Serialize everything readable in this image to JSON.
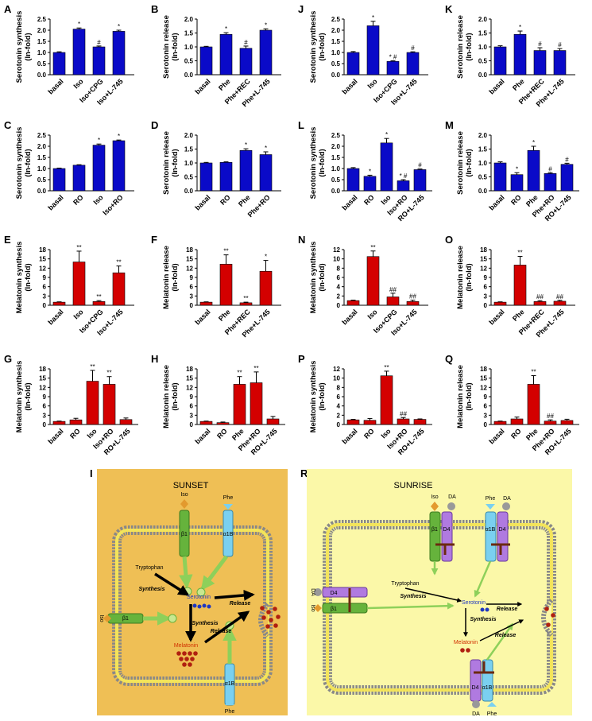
{
  "chart_data": [
    {
      "type": "bar",
      "label": "A",
      "ylabel": [
        "Serotonin synthesis",
        "(In-fold)"
      ],
      "categories": [
        "basal",
        "Iso",
        "Iso+CPG",
        "Iso+L-745"
      ],
      "values": [
        1,
        2.05,
        1.25,
        1.95
      ],
      "errors": [
        0.03,
        0.05,
        0.04,
        0.05
      ],
      "annotations": [
        null,
        "*",
        "#",
        "*"
      ],
      "color": "#0a0ac8",
      "ylim": [
        0,
        2.5
      ],
      "yticks": [
        {
          "value": 0,
          "label": "0.0"
        },
        0.5,
        {
          "value": 1,
          "label": "1.0"
        },
        1.5,
        {
          "value": 2,
          "label": "2.0"
        },
        2.5
      ]
    },
    {
      "type": "bar",
      "label": "B",
      "ylabel": [
        "Serotonin release",
        "(In-fold)"
      ],
      "categories": [
        "basal",
        "Phe",
        "Phe+REC",
        "Phe+L-745"
      ],
      "values": [
        1,
        1.45,
        0.95,
        1.6
      ],
      "errors": [
        0.02,
        0.06,
        0.08,
        0.05
      ],
      "annotations": [
        null,
        "*",
        "#",
        "*"
      ],
      "color": "#0a0ac8",
      "ylim": [
        0,
        2
      ],
      "yticks": [
        {
          "value": 0,
          "label": "0.0"
        },
        0.5,
        {
          "value": 1,
          "label": "1.0"
        },
        1.5,
        {
          "value": 2,
          "label": "2.0"
        }
      ]
    },
    {
      "type": "bar",
      "label": "J",
      "ylabel": [
        "Serotonin synthesis",
        "(In-fold)"
      ],
      "categories": [
        "basal",
        "Iso",
        "Iso+CPG",
        "Iso+L-745"
      ],
      "values": [
        1,
        2.2,
        0.6,
        1
      ],
      "errors": [
        0.04,
        0.2,
        0.03,
        0.03
      ],
      "annotations": [
        null,
        "*",
        "* #",
        "#"
      ],
      "color": "#0a0ac8",
      "ylim": [
        0,
        2.5
      ],
      "yticks": [
        {
          "value": 0,
          "label": "0.0"
        },
        0.5,
        {
          "value": 1,
          "label": "1.0"
        },
        1.5,
        {
          "value": 2,
          "label": "2.0"
        },
        2.5
      ]
    },
    {
      "type": "bar",
      "label": "K",
      "ylabel": [
        "Serotonin release",
        "(In-fold)"
      ],
      "categories": [
        "basal",
        "Phe",
        "Phe+REC",
        "Phe+L-745"
      ],
      "values": [
        1,
        1.45,
        0.87,
        0.87
      ],
      "errors": [
        0.04,
        0.12,
        0.1,
        0.07
      ],
      "annotations": [
        null,
        "*",
        "#",
        "#"
      ],
      "color": "#0a0ac8",
      "ylim": [
        0,
        2
      ],
      "yticks": [
        {
          "value": 0,
          "label": "0.0"
        },
        0.5,
        {
          "value": 1,
          "label": "1.0"
        },
        1.5,
        {
          "value": 2,
          "label": "2.0"
        }
      ]
    },
    {
      "type": "bar",
      "label": "C",
      "ylabel": [
        "Serotonin synthesis",
        "(In-fold)"
      ],
      "categories": [
        "basal",
        "RO",
        "Iso",
        "Iso+RO"
      ],
      "values": [
        1,
        1.15,
        2.05,
        2.25
      ],
      "errors": [
        0.02,
        0.02,
        0.05,
        0.03
      ],
      "annotations": [
        null,
        null,
        "*",
        "*"
      ],
      "color": "#0a0ac8",
      "ylim": [
        0,
        2.5
      ],
      "yticks": [
        {
          "value": 0,
          "label": "0.0"
        },
        0.5,
        {
          "value": 1,
          "label": "1.0"
        },
        1.5,
        {
          "value": 2,
          "label": "2.0"
        },
        2.5
      ]
    },
    {
      "type": "bar",
      "label": "D",
      "ylabel": [
        "Serotonin release",
        "(In-fold)"
      ],
      "categories": [
        "basal",
        "RO",
        "Phe",
        "Phe+RO"
      ],
      "values": [
        1,
        1.02,
        1.45,
        1.3
      ],
      "errors": [
        0.02,
        0.02,
        0.06,
        0.1
      ],
      "annotations": [
        null,
        null,
        "*",
        "*"
      ],
      "color": "#0a0ac8",
      "ylim": [
        0,
        2
      ],
      "yticks": [
        {
          "value": 0,
          "label": "0.0"
        },
        0.5,
        {
          "value": 1,
          "label": "1.0"
        },
        1.5,
        {
          "value": 2,
          "label": "2.0"
        }
      ]
    },
    {
      "type": "bar",
      "label": "L",
      "ylabel": [
        "Serotonin synthesis",
        "(In-fold)"
      ],
      "categories": [
        "basal",
        "RO",
        "Iso",
        "Iso+RO",
        "RO+L-745"
      ],
      "values": [
        1,
        0.65,
        2.15,
        0.45,
        0.95
      ],
      "errors": [
        0.04,
        0.05,
        0.2,
        0.05,
        0.03
      ],
      "annotations": [
        null,
        "*",
        "*",
        "* #",
        "#"
      ],
      "color": "#0a0ac8",
      "ylim": [
        0,
        2.5
      ],
      "yticks": [
        {
          "value": 0,
          "label": "0.0"
        },
        0.5,
        {
          "value": 1,
          "label": "1.0"
        },
        1.5,
        {
          "value": 2,
          "label": "2.0"
        },
        2.5
      ]
    },
    {
      "type": "bar",
      "label": "M",
      "ylabel": [
        "Serotonin release",
        "(In-fold)"
      ],
      "categories": [
        "basal",
        "RO",
        "Phe",
        "Phe+RO",
        "RO+L-745"
      ],
      "values": [
        1,
        0.58,
        1.45,
        0.62,
        0.95
      ],
      "errors": [
        0.04,
        0.07,
        0.15,
        0.03,
        0.04
      ],
      "annotations": [
        null,
        "*",
        "*",
        "#",
        "#"
      ],
      "color": "#0a0ac8",
      "ylim": [
        0,
        2
      ],
      "yticks": [
        {
          "value": 0,
          "label": "0.0"
        },
        0.5,
        {
          "value": 1,
          "label": "1.0"
        },
        1.5,
        {
          "value": 2,
          "label": "2.0"
        }
      ]
    },
    {
      "type": "bar",
      "label": "E",
      "ylabel": [
        "Melatonin synthesis",
        "(In-fold)"
      ],
      "categories": [
        "basal",
        "Iso",
        "Iso+CPG",
        "Iso+L-745"
      ],
      "values": [
        1,
        14,
        1.2,
        10.5
      ],
      "errors": [
        0.1,
        3.5,
        0.3,
        2.2
      ],
      "annotations": [
        null,
        "**",
        "**",
        "**"
      ],
      "color": "#d40000",
      "ylim": [
        0,
        18
      ],
      "yticks": [
        0,
        3,
        6,
        9,
        12,
        15,
        18
      ]
    },
    {
      "type": "bar",
      "label": "F",
      "ylabel": [
        "Melatonin release",
        "(In-fold)"
      ],
      "categories": [
        "basal",
        "Phe",
        "Phe+REC",
        "Phe+L-745"
      ],
      "values": [
        1,
        13.3,
        0.8,
        11
      ],
      "errors": [
        0.1,
        3,
        0.2,
        3.5
      ],
      "annotations": [
        null,
        "**",
        "**",
        "*"
      ],
      "color": "#d40000",
      "ylim": [
        0,
        18
      ],
      "yticks": [
        0,
        3,
        6,
        9,
        12,
        15,
        18
      ]
    },
    {
      "type": "bar",
      "label": "N",
      "ylabel": [
        "Melatonin synthesis",
        "(In-fold)"
      ],
      "categories": [
        "basal",
        "Iso",
        "Iso+CPG",
        "Iso+L-745"
      ],
      "values": [
        1,
        10.5,
        1.8,
        0.8
      ],
      "errors": [
        0.1,
        1.2,
        0.8,
        0.3
      ],
      "annotations": [
        null,
        "**",
        "##",
        "##"
      ],
      "color": "#d40000",
      "ylim": [
        0,
        12
      ],
      "yticks": [
        0,
        2,
        4,
        6,
        8,
        10,
        12
      ]
    },
    {
      "type": "bar",
      "label": "O",
      "ylabel": [
        "Melatonin release",
        "(In-fold)"
      ],
      "categories": [
        "basal",
        "Phe",
        "Phe+REC",
        "Phe+L-745"
      ],
      "values": [
        1,
        13,
        1.2,
        1.3
      ],
      "errors": [
        0.1,
        2.8,
        0.3,
        0.3
      ],
      "annotations": [
        null,
        "**",
        "##",
        "##"
      ],
      "color": "#d40000",
      "ylim": [
        0,
        18
      ],
      "yticks": [
        0,
        3,
        6,
        9,
        12,
        15,
        18
      ]
    },
    {
      "type": "bar",
      "label": "G",
      "ylabel": [
        "Melatonin synthesis",
        "(In-fold)"
      ],
      "categories": [
        "basal",
        "RO",
        "Iso",
        "Iso+RO",
        "RO+L-745"
      ],
      "values": [
        1,
        1.5,
        14,
        13,
        1.6
      ],
      "errors": [
        0.1,
        0.5,
        3.5,
        2.5,
        0.5
      ],
      "annotations": [
        null,
        null,
        "**",
        "**",
        null
      ],
      "color": "#d40000",
      "ylim": [
        0,
        18
      ],
      "yticks": [
        0,
        3,
        6,
        9,
        12,
        15,
        18
      ]
    },
    {
      "type": "bar",
      "label": "H",
      "ylabel": [
        "Melatonin release",
        "(In-fold)"
      ],
      "categories": [
        "basal",
        "RO",
        "Phe",
        "Phe+RO",
        "RO+L-745"
      ],
      "values": [
        1,
        0.6,
        13,
        13.5,
        1.8
      ],
      "errors": [
        0.1,
        0.2,
        2.5,
        3.5,
        0.8
      ],
      "annotations": [
        null,
        null,
        "**",
        "**",
        null
      ],
      "color": "#d40000",
      "ylim": [
        0,
        18
      ],
      "yticks": [
        0,
        3,
        6,
        9,
        12,
        15,
        18
      ]
    },
    {
      "type": "bar",
      "label": "P",
      "ylabel": [
        "Melatonin synthesis",
        "(In-fold)"
      ],
      "categories": [
        "basal",
        "RO",
        "Iso",
        "Iso+RO",
        "RO+L-745"
      ],
      "values": [
        1,
        0.9,
        10.5,
        1.2,
        1.1
      ],
      "errors": [
        0.1,
        0.4,
        1,
        0.3,
        0.1
      ],
      "annotations": [
        null,
        null,
        "**",
        "##",
        null
      ],
      "color": "#d40000",
      "ylim": [
        0,
        12
      ],
      "yticks": [
        0,
        2,
        4,
        6,
        8,
        10,
        12
      ]
    },
    {
      "type": "bar",
      "label": "Q",
      "ylabel": [
        "Melatonin release",
        "(In-fold)"
      ],
      "categories": [
        "basal",
        "RO",
        "Phe",
        "Phe+RO",
        "RO+L-745"
      ],
      "values": [
        1,
        1.8,
        13,
        1.1,
        1.3
      ],
      "errors": [
        0.1,
        0.6,
        2.8,
        0.4,
        0.4
      ],
      "annotations": [
        null,
        null,
        "**",
        "##",
        null
      ],
      "color": "#d40000",
      "ylim": [
        0,
        18
      ],
      "yticks": [
        0,
        3,
        6,
        9,
        12,
        15,
        18
      ]
    }
  ],
  "diagrams": [
    {
      "label": "I",
      "title": "SUNSET",
      "texts": [
        "Iso",
        "β1",
        "Phe",
        "α1B",
        "Tryptophan",
        "Synthesis",
        "Serotonin",
        "Release",
        "Synthesis",
        "Melatonin",
        "Release",
        "Iso",
        "β1",
        "α1B",
        "Phe"
      ]
    },
    {
      "label": "R",
      "title": "SUNRISE",
      "texts": [
        "Iso",
        "DA",
        "β1",
        "D4",
        "Phe",
        "DA",
        "α1B",
        "D4",
        "Tryptophan",
        "Synthesis",
        "Serotonin",
        "Release",
        "Synthesis",
        "Melatonin",
        "Release",
        "DA",
        "Iso",
        "D4",
        "β1",
        "D4",
        "α1B",
        "DA",
        "Phe"
      ]
    }
  ]
}
